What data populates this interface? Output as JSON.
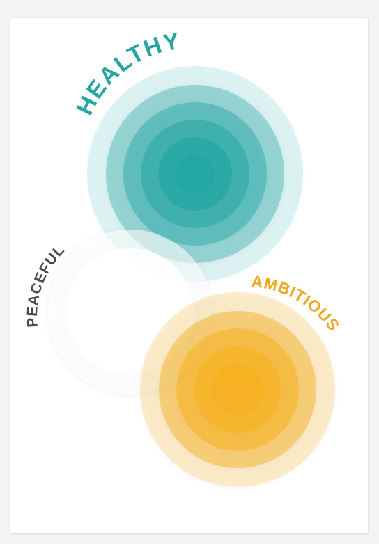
{
  "poster": {
    "words": [
      {
        "key": "healthy",
        "text": "HEALTHY",
        "color": "#26a5a6"
      },
      {
        "key": "peaceful",
        "text": "PEACEFUL",
        "color": "#4a4a4a"
      },
      {
        "key": "ambitious",
        "text": "AMBITIOUS",
        "color": "#f0a81f"
      }
    ],
    "colors": {
      "teal": "#1fa5a4",
      "white": "#ffffff",
      "amber": "#f6b120",
      "background": "#f4f4f4",
      "paper": "#ffffff"
    }
  }
}
